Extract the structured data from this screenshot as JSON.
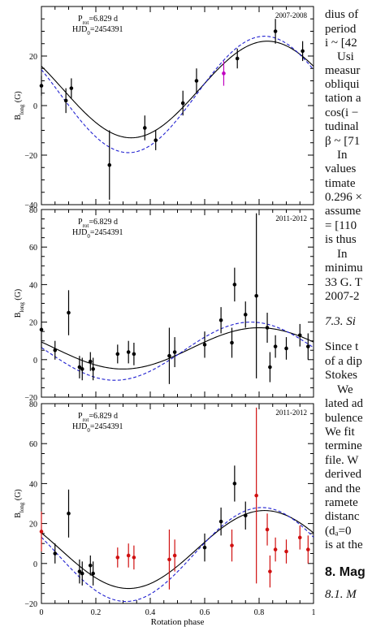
{
  "chart_data": [
    {
      "type": "scatter",
      "subtitle": "2007-2008",
      "legend_lines": [
        "Prot=6.829 d",
        "HJD0=2454391"
      ],
      "ylabel": "Blong (G)",
      "ylim": [
        -40,
        40
      ],
      "yticks": [
        -40,
        -20,
        0,
        20
      ],
      "xlim": [
        0,
        1
      ],
      "points": [
        {
          "x": 0.0,
          "y": 8,
          "err": 4,
          "color": "#000000"
        },
        {
          "x": 0.09,
          "y": 2,
          "err": 5,
          "color": "#000000"
        },
        {
          "x": 0.11,
          "y": 7,
          "err": 4,
          "color": "#000000"
        },
        {
          "x": 0.25,
          "y": -24,
          "err": 14,
          "color": "#000000"
        },
        {
          "x": 0.38,
          "y": -9,
          "err": 5,
          "color": "#000000"
        },
        {
          "x": 0.42,
          "y": -14,
          "err": 4,
          "color": "#000000"
        },
        {
          "x": 0.52,
          "y": 1,
          "err": 5,
          "color": "#000000"
        },
        {
          "x": 0.57,
          "y": 10,
          "err": 5,
          "color": "#000000"
        },
        {
          "x": 0.67,
          "y": 13,
          "err": 5,
          "color": "#c000c0"
        },
        {
          "x": 0.72,
          "y": 19,
          "err": 4,
          "color": "#000000"
        },
        {
          "x": 0.86,
          "y": 30,
          "err": 5,
          "color": "#000000"
        },
        {
          "x": 0.96,
          "y": 22,
          "err": 4,
          "color": "#000000"
        }
      ],
      "models": [
        {
          "style": "solid",
          "color": "#000000",
          "offset": 6.5,
          "amplitude": 19.5,
          "peak_phase": 0.83
        },
        {
          "style": "dashed",
          "color": "#2020d0",
          "offset": 4.5,
          "amplitude": 23.5,
          "peak_phase": 0.82
        }
      ]
    },
    {
      "type": "scatter",
      "subtitle": "2011-2012",
      "legend_lines": [
        "Prot=6.829 d",
        "HJD0=2454391"
      ],
      "ylabel": "Blong (G)",
      "ylim": [
        -20,
        80
      ],
      "yticks": [
        -20,
        0,
        20,
        40,
        60,
        80
      ],
      "xlim": [
        0,
        1
      ],
      "points": [
        {
          "x": 0.0,
          "y": 16,
          "err": 10,
          "color": "#000000"
        },
        {
          "x": 0.05,
          "y": 5,
          "err": 5,
          "color": "#000000"
        },
        {
          "x": 0.1,
          "y": 25,
          "err": 12,
          "color": "#000000"
        },
        {
          "x": 0.14,
          "y": -4,
          "err": 6,
          "color": "#000000"
        },
        {
          "x": 0.15,
          "y": -5,
          "err": 6,
          "color": "#000000"
        },
        {
          "x": 0.18,
          "y": -1,
          "err": 5,
          "color": "#000000"
        },
        {
          "x": 0.19,
          "y": -5,
          "err": 6,
          "color": "#000000"
        },
        {
          "x": 0.28,
          "y": 3,
          "err": 5,
          "color": "#000000"
        },
        {
          "x": 0.32,
          "y": 4,
          "err": 6,
          "color": "#000000"
        },
        {
          "x": 0.34,
          "y": 3,
          "err": 6,
          "color": "#000000"
        },
        {
          "x": 0.47,
          "y": 2,
          "err": 15,
          "color": "#000000"
        },
        {
          "x": 0.49,
          "y": 4,
          "err": 8,
          "color": "#000000"
        },
        {
          "x": 0.6,
          "y": 8,
          "err": 7,
          "color": "#000000"
        },
        {
          "x": 0.66,
          "y": 21,
          "err": 7,
          "color": "#000000"
        },
        {
          "x": 0.7,
          "y": 9,
          "err": 8,
          "color": "#000000"
        },
        {
          "x": 0.71,
          "y": 40,
          "err": 9,
          "color": "#000000"
        },
        {
          "x": 0.75,
          "y": 24,
          "err": 7,
          "color": "#000000"
        },
        {
          "x": 0.79,
          "y": 34,
          "err": 44,
          "color": "#000000"
        },
        {
          "x": 0.83,
          "y": 17,
          "err": 8,
          "color": "#000000"
        },
        {
          "x": 0.84,
          "y": -4,
          "err": 8,
          "color": "#000000"
        },
        {
          "x": 0.86,
          "y": 7,
          "err": 6,
          "color": "#000000"
        },
        {
          "x": 0.9,
          "y": 6,
          "err": 6,
          "color": "#000000"
        },
        {
          "x": 0.95,
          "y": 13,
          "err": 6,
          "color": "#000000"
        },
        {
          "x": 0.98,
          "y": 7,
          "err": 7,
          "color": "#000000"
        }
      ],
      "models": [
        {
          "style": "solid",
          "color": "#000000",
          "offset": 6,
          "amplitude": 11,
          "peak_phase": 0.8
        },
        {
          "style": "dashed",
          "color": "#2020d0",
          "offset": 4.5,
          "amplitude": 15.5,
          "peak_phase": 0.77
        }
      ]
    },
    {
      "type": "scatter",
      "subtitle": "2011-2012",
      "legend_lines": [
        "Prot=6.829 d",
        "HJD0=2454391"
      ],
      "ylabel": "Blong (G)",
      "xlabel": "Rotation phase",
      "ylim": [
        -20,
        80
      ],
      "yticks": [
        -20,
        0,
        20,
        40,
        60,
        80
      ],
      "xlim": [
        0,
        1
      ],
      "xticks": [
        0,
        0.2,
        0.4,
        0.6,
        0.8,
        1
      ],
      "points": [
        {
          "x": 0.0,
          "y": 16,
          "err": 10,
          "color": "#d01010"
        },
        {
          "x": 0.05,
          "y": 5,
          "err": 5,
          "color": "#000000"
        },
        {
          "x": 0.1,
          "y": 25,
          "err": 12,
          "color": "#000000"
        },
        {
          "x": 0.14,
          "y": -4,
          "err": 6,
          "color": "#000000"
        },
        {
          "x": 0.15,
          "y": -5,
          "err": 6,
          "color": "#000000"
        },
        {
          "x": 0.18,
          "y": -1,
          "err": 5,
          "color": "#000000"
        },
        {
          "x": 0.19,
          "y": -5,
          "err": 6,
          "color": "#000000"
        },
        {
          "x": 0.28,
          "y": 3,
          "err": 5,
          "color": "#d01010"
        },
        {
          "x": 0.32,
          "y": 4,
          "err": 6,
          "color": "#d01010"
        },
        {
          "x": 0.34,
          "y": 3,
          "err": 6,
          "color": "#d01010"
        },
        {
          "x": 0.47,
          "y": 2,
          "err": 15,
          "color": "#d01010"
        },
        {
          "x": 0.49,
          "y": 4,
          "err": 8,
          "color": "#d01010"
        },
        {
          "x": 0.6,
          "y": 8,
          "err": 7,
          "color": "#000000"
        },
        {
          "x": 0.66,
          "y": 21,
          "err": 7,
          "color": "#000000"
        },
        {
          "x": 0.7,
          "y": 9,
          "err": 8,
          "color": "#d01010"
        },
        {
          "x": 0.71,
          "y": 40,
          "err": 9,
          "color": "#000000"
        },
        {
          "x": 0.75,
          "y": 24,
          "err": 7,
          "color": "#000000"
        },
        {
          "x": 0.79,
          "y": 34,
          "err": 44,
          "color": "#d01010"
        },
        {
          "x": 0.83,
          "y": 17,
          "err": 8,
          "color": "#d01010"
        },
        {
          "x": 0.84,
          "y": -4,
          "err": 8,
          "color": "#d01010"
        },
        {
          "x": 0.86,
          "y": 7,
          "err": 6,
          "color": "#d01010"
        },
        {
          "x": 0.9,
          "y": 6,
          "err": 6,
          "color": "#d01010"
        },
        {
          "x": 0.95,
          "y": 13,
          "err": 6,
          "color": "#d01010"
        },
        {
          "x": 0.98,
          "y": 7,
          "err": 7,
          "color": "#d01010"
        }
      ],
      "models": [
        {
          "style": "solid",
          "color": "#000000",
          "offset": 7,
          "amplitude": 19.5,
          "peak_phase": 0.82
        },
        {
          "style": "dashed",
          "color": "#2020d0",
          "offset": 4.5,
          "amplitude": 23.5,
          "peak_phase": 0.81
        }
      ]
    }
  ],
  "side_text": {
    "lines": [
      "dius of",
      "period",
      "i ~ [42",
      "Usi",
      "measur",
      "obliqui",
      "tation a",
      "cos(i −",
      "tudinal",
      "β ~ [71",
      "In",
      "values",
      "timate",
      "0.296 ×",
      "assume",
      "= [110",
      "is thus",
      "In",
      "minimu",
      "33 G. T",
      "2007-2",
      "7.3. Si",
      "Since t",
      "of a dip",
      "Stokes",
      "We",
      "lated ad",
      "bulence",
      "We fit",
      "termine",
      "file. W",
      "derived",
      "and the",
      "ramete",
      "distanc",
      "(dₐ=0",
      "is at the",
      "8. Mag",
      "8.1. M"
    ]
  }
}
